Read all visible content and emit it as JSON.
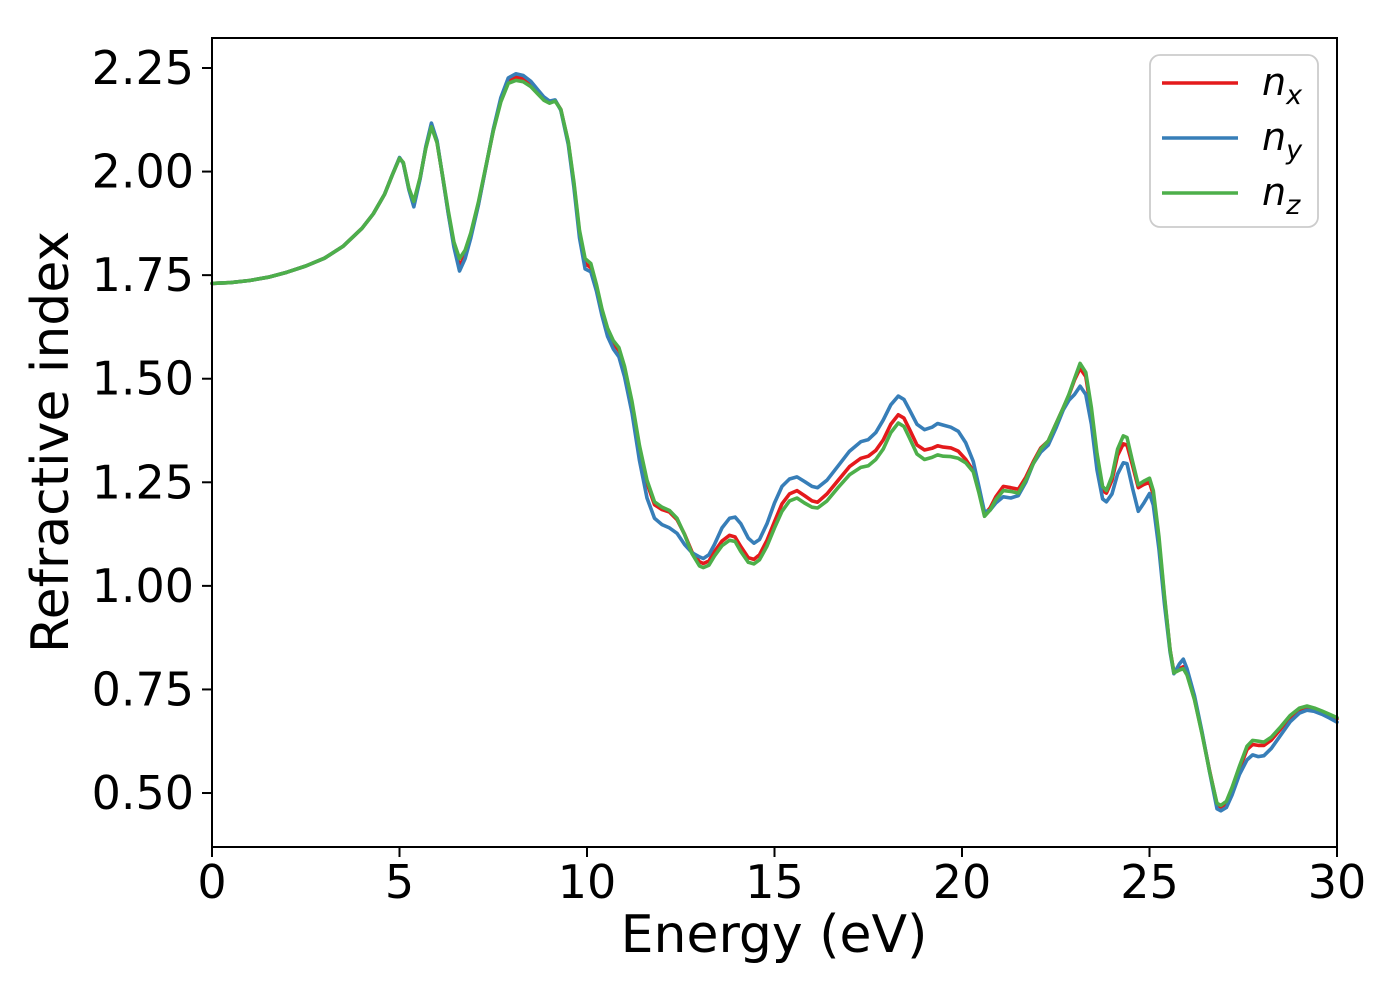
{
  "chart_data": {
    "type": "line",
    "title": "",
    "xlabel": "Energy (eV)",
    "ylabel": "Refractive index",
    "xlim": [
      0,
      30
    ],
    "ylim": [
      0.3697,
      2.3224
    ],
    "x_ticks": [
      "0",
      "5",
      "10",
      "15",
      "20",
      "25",
      "30"
    ],
    "y_ticks": [
      "0.50",
      "0.75",
      "1.00",
      "1.25",
      "1.50",
      "1.75",
      "2.00",
      "2.25"
    ],
    "grid": false,
    "frame_color": "#000000",
    "line_width": 3.6,
    "legend": {
      "position": "upper right",
      "edge_color": "#cccccc",
      "face_color": "#ffffff"
    },
    "x": [
      0,
      0.5,
      1,
      1.5,
      2,
      2.5,
      3,
      3.5,
      4,
      4.3,
      4.6,
      4.8,
      5,
      5.1,
      5.25,
      5.38,
      5.55,
      5.7,
      5.85,
      6,
      6.15,
      6.3,
      6.45,
      6.6,
      6.75,
      6.9,
      7.1,
      7.3,
      7.5,
      7.7,
      7.9,
      8.1,
      8.3,
      8.5,
      8.7,
      8.85,
      9,
      9.15,
      9.3,
      9.5,
      9.65,
      9.8,
      9.95,
      10.1,
      10.25,
      10.4,
      10.55,
      10.7,
      10.85,
      11,
      11.2,
      11.4,
      11.6,
      11.8,
      12,
      12.2,
      12.4,
      12.6,
      12.8,
      13,
      13.1,
      13.25,
      13.4,
      13.6,
      13.8,
      13.95,
      14.1,
      14.3,
      14.45,
      14.6,
      14.8,
      15,
      15.2,
      15.4,
      15.6,
      15.8,
      16,
      16.15,
      16.4,
      16.7,
      17,
      17.3,
      17.5,
      17.7,
      17.9,
      18.1,
      18.3,
      18.45,
      18.6,
      18.8,
      19,
      19.2,
      19.35,
      19.5,
      19.7,
      19.9,
      20.1,
      20.3,
      20.45,
      20.6,
      20.75,
      20.9,
      21.1,
      21.3,
      21.5,
      21.7,
      21.9,
      22.1,
      22.3,
      22.5,
      22.7,
      22.85,
      23,
      23.15,
      23.3,
      23.45,
      23.6,
      23.75,
      23.85,
      24,
      24.15,
      24.3,
      24.4,
      24.55,
      24.7,
      24.85,
      25,
      25.1,
      25.25,
      25.4,
      25.55,
      25.65,
      25.8,
      25.9,
      26,
      26.2,
      26.4,
      26.6,
      26.8,
      26.9,
      27.05,
      27.2,
      27.4,
      27.6,
      27.75,
      27.9,
      28.05,
      28.25,
      28.5,
      28.75,
      29,
      29.2,
      29.4,
      29.6,
      29.8,
      30
    ],
    "series": [
      {
        "name": "n_x",
        "label_main": "n",
        "label_sub": "x",
        "color": "#e41a1c",
        "values": [
          1.73,
          1.732,
          1.737,
          1.745,
          1.757,
          1.772,
          1.791,
          1.82,
          1.863,
          1.898,
          1.945,
          1.99,
          2.033,
          2.021,
          1.958,
          1.922,
          1.984,
          2.058,
          2.112,
          2.072,
          1.988,
          1.9,
          1.823,
          1.772,
          1.798,
          1.845,
          1.92,
          2.01,
          2.1,
          2.172,
          2.218,
          2.228,
          2.224,
          2.21,
          2.19,
          2.176,
          2.168,
          2.172,
          2.15,
          2.07,
          1.97,
          1.852,
          1.778,
          1.768,
          1.72,
          1.662,
          1.615,
          1.585,
          1.568,
          1.522,
          1.438,
          1.33,
          1.248,
          1.196,
          1.184,
          1.178,
          1.16,
          1.125,
          1.082,
          1.058,
          1.054,
          1.06,
          1.083,
          1.108,
          1.122,
          1.118,
          1.095,
          1.068,
          1.064,
          1.075,
          1.11,
          1.155,
          1.198,
          1.222,
          1.23,
          1.218,
          1.205,
          1.202,
          1.222,
          1.255,
          1.288,
          1.308,
          1.313,
          1.327,
          1.352,
          1.39,
          1.413,
          1.405,
          1.378,
          1.34,
          1.328,
          1.332,
          1.338,
          1.335,
          1.333,
          1.325,
          1.305,
          1.278,
          1.23,
          1.173,
          1.188,
          1.215,
          1.24,
          1.237,
          1.233,
          1.262,
          1.3,
          1.333,
          1.35,
          1.39,
          1.43,
          1.46,
          1.497,
          1.525,
          1.505,
          1.42,
          1.31,
          1.23,
          1.224,
          1.255,
          1.315,
          1.343,
          1.34,
          1.29,
          1.237,
          1.245,
          1.25,
          1.22,
          1.11,
          0.97,
          0.845,
          0.792,
          0.8,
          0.805,
          0.788,
          0.727,
          0.645,
          0.555,
          0.472,
          0.466,
          0.475,
          0.508,
          0.558,
          0.605,
          0.617,
          0.615,
          0.615,
          0.628,
          0.655,
          0.683,
          0.7,
          0.706,
          0.702,
          0.696,
          0.688,
          0.679
        ]
      },
      {
        "name": "n_y",
        "label_main": "n",
        "label_sub": "y",
        "color": "#377eb8",
        "values": [
          1.73,
          1.732,
          1.737,
          1.745,
          1.757,
          1.772,
          1.791,
          1.82,
          1.863,
          1.898,
          1.945,
          1.99,
          2.034,
          2.02,
          1.956,
          1.915,
          1.982,
          2.06,
          2.117,
          2.075,
          1.988,
          1.898,
          1.818,
          1.76,
          1.79,
          1.84,
          1.918,
          2.01,
          2.102,
          2.178,
          2.226,
          2.236,
          2.232,
          2.218,
          2.196,
          2.18,
          2.17,
          2.173,
          2.148,
          2.065,
          1.962,
          1.84,
          1.765,
          1.758,
          1.712,
          1.652,
          1.602,
          1.572,
          1.553,
          1.505,
          1.418,
          1.302,
          1.212,
          1.163,
          1.148,
          1.14,
          1.127,
          1.1,
          1.08,
          1.07,
          1.066,
          1.075,
          1.1,
          1.14,
          1.163,
          1.166,
          1.15,
          1.115,
          1.103,
          1.112,
          1.15,
          1.2,
          1.24,
          1.258,
          1.263,
          1.252,
          1.24,
          1.237,
          1.255,
          1.29,
          1.325,
          1.348,
          1.353,
          1.37,
          1.4,
          1.437,
          1.458,
          1.45,
          1.425,
          1.39,
          1.377,
          1.383,
          1.392,
          1.388,
          1.383,
          1.373,
          1.345,
          1.3,
          1.24,
          1.178,
          1.183,
          1.2,
          1.215,
          1.212,
          1.218,
          1.25,
          1.295,
          1.323,
          1.34,
          1.38,
          1.425,
          1.448,
          1.462,
          1.482,
          1.462,
          1.39,
          1.28,
          1.21,
          1.203,
          1.222,
          1.27,
          1.297,
          1.295,
          1.235,
          1.18,
          1.2,
          1.223,
          1.195,
          1.09,
          0.955,
          0.84,
          0.788,
          0.812,
          0.823,
          0.8,
          0.735,
          0.648,
          0.552,
          0.462,
          0.457,
          0.465,
          0.495,
          0.545,
          0.58,
          0.592,
          0.588,
          0.59,
          0.608,
          0.64,
          0.672,
          0.693,
          0.7,
          0.697,
          0.69,
          0.681,
          0.671
        ]
      },
      {
        "name": "n_z",
        "label_main": "n",
        "label_sub": "z",
        "color": "#4daf4a",
        "values": [
          1.73,
          1.732,
          1.737,
          1.745,
          1.757,
          1.772,
          1.791,
          1.82,
          1.863,
          1.898,
          1.945,
          1.99,
          2.032,
          2.022,
          1.96,
          1.928,
          1.986,
          2.056,
          2.108,
          2.07,
          1.99,
          1.905,
          1.83,
          1.79,
          1.81,
          1.852,
          1.925,
          2.012,
          2.098,
          2.168,
          2.213,
          2.22,
          2.217,
          2.205,
          2.186,
          2.172,
          2.165,
          2.17,
          2.15,
          2.072,
          1.975,
          1.858,
          1.79,
          1.778,
          1.728,
          1.668,
          1.622,
          1.592,
          1.575,
          1.53,
          1.445,
          1.338,
          1.255,
          1.203,
          1.19,
          1.182,
          1.163,
          1.124,
          1.078,
          1.048,
          1.044,
          1.05,
          1.072,
          1.097,
          1.11,
          1.107,
          1.083,
          1.057,
          1.053,
          1.063,
          1.096,
          1.14,
          1.18,
          1.205,
          1.212,
          1.2,
          1.19,
          1.188,
          1.205,
          1.238,
          1.268,
          1.286,
          1.29,
          1.305,
          1.33,
          1.37,
          1.393,
          1.385,
          1.357,
          1.318,
          1.305,
          1.31,
          1.316,
          1.313,
          1.312,
          1.308,
          1.297,
          1.275,
          1.225,
          1.168,
          1.183,
          1.208,
          1.23,
          1.228,
          1.224,
          1.255,
          1.295,
          1.33,
          1.35,
          1.39,
          1.43,
          1.462,
          1.5,
          1.537,
          1.515,
          1.43,
          1.32,
          1.24,
          1.23,
          1.265,
          1.33,
          1.362,
          1.358,
          1.3,
          1.244,
          1.253,
          1.26,
          1.23,
          1.12,
          0.975,
          0.845,
          0.79,
          0.797,
          0.8,
          0.785,
          0.725,
          0.643,
          0.553,
          0.475,
          0.47,
          0.48,
          0.513,
          0.565,
          0.613,
          0.627,
          0.625,
          0.623,
          0.635,
          0.66,
          0.687,
          0.705,
          0.71,
          0.705,
          0.698,
          0.69,
          0.682
        ]
      }
    ]
  }
}
